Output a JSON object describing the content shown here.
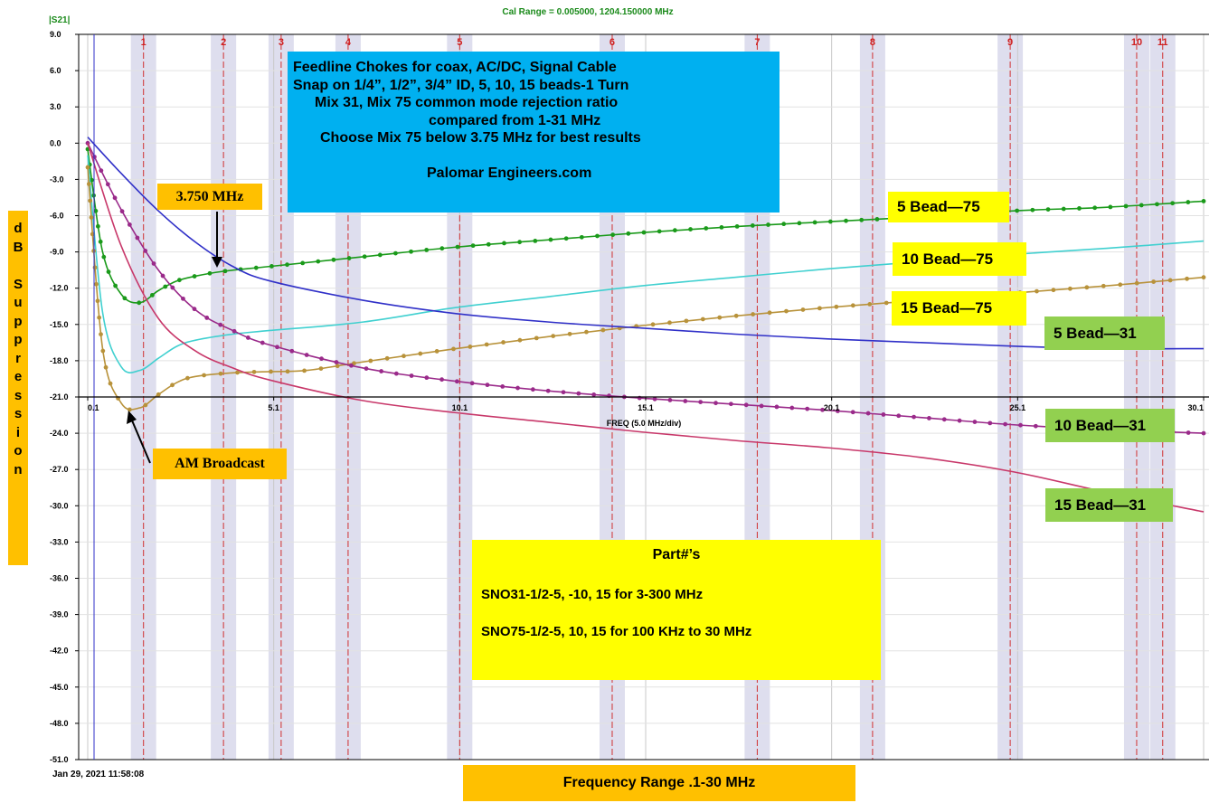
{
  "header": {
    "cal_range": "Cal Range = 0.005000,   1204.150000 MHz",
    "trace_label": "|S21|",
    "timestamp": "Jan 29, 2021  11:58:08",
    "x_axis_caption": "FREQ (5.0 MHz/div)"
  },
  "title_box": {
    "lines": [
      "Feedline Chokes for coax, AC/DC, Signal Cable",
      "Snap on 1/4”, 1/2”, 3/4” ID, 5, 10, 15 beads-1 Turn",
      "Mix 31, Mix 75 common mode rejection ratio",
      "compared from 1-31 MHz",
      "Choose Mix 75 below 3.75 MHz for best results",
      "",
      "Palomar Engineers.com"
    ]
  },
  "parts_box": {
    "heading": "Part#’s",
    "line1": "SNO31-1/2-5, -10, 15 for 3-300 MHz",
    "line2": "SNO75-1/2-5, 10, 15 for 100 KHz to 30 MHz"
  },
  "annotations": {
    "freq_375": "3.750 MHz",
    "am_broadcast": "AM Broadcast",
    "y_axis_title": "dB Suppression",
    "x_axis_title": "Frequency Range .1-30 MHz"
  },
  "series_labels": {
    "b5_75": "5 Bead—75",
    "b10_75": "10 Bead—75",
    "b15_75": "15 Bead—75",
    "b5_31": "5 Bead—31",
    "b10_31": "10 Bead—31",
    "b15_31": "15 Bead—31"
  },
  "colors": {
    "b5_75": "#1a9a1a",
    "b10_75": "#40d0d0",
    "b15_75": "#b8923a",
    "b5_31": "#3030c8",
    "b10_31": "#9a2a8a",
    "b15_31": "#c8386a",
    "title_bg": "#00b0f0",
    "label_yellow": "#ffff00",
    "label_green": "#92d050",
    "label_orange": "#ffc000"
  },
  "chart_data": {
    "type": "line",
    "xlim": [
      0.1,
      30.1
    ],
    "ylim": [
      -51,
      9
    ],
    "x_ticks": [
      {
        "value": 0.1,
        "label": "0.1"
      },
      {
        "value": 5.1,
        "label": "5.1"
      },
      {
        "value": 10.1,
        "label": "10.1"
      },
      {
        "value": 15.1,
        "label": "15.1"
      },
      {
        "value": 20.1,
        "label": "20.1"
      },
      {
        "value": 25.1,
        "label": "25.1"
      },
      {
        "value": 30.1,
        "label": "30.1"
      }
    ],
    "y_ticks": [
      9.0,
      6.0,
      3.0,
      0.0,
      -3.0,
      -6.0,
      -9.0,
      -12.0,
      -15.0,
      -18.0,
      -21.0,
      -24.0,
      -27.0,
      -30.0,
      -33.0,
      -36.0,
      -39.0,
      -42.0,
      -45.0,
      -48.0,
      -51.0
    ],
    "y_tick_labels": [
      "9.0",
      "6.0",
      "3.0",
      "0.0",
      "-3.0",
      "-6.0",
      "-9.0",
      "-12.0",
      "-15.0",
      "-18.0",
      "-21.0",
      "-24.0",
      "-27.0",
      "-30.0",
      "-33.0",
      "-36.0",
      "-39.0",
      "-42.0",
      "-45.0",
      "-48.0",
      "-51.0"
    ],
    "markers": [
      {
        "label": "1",
        "x": 1.6
      },
      {
        "label": "2",
        "x": 3.75
      },
      {
        "label": "3",
        "x": 5.3
      },
      {
        "label": "4",
        "x": 7.1
      },
      {
        "label": "5",
        "x": 10.1
      },
      {
        "label": "6",
        "x": 14.2
      },
      {
        "label": "7",
        "x": 18.1
      },
      {
        "label": "8",
        "x": 21.2
      },
      {
        "label": "9",
        "x": 24.9
      },
      {
        "label": "10",
        "x": 28.3
      },
      {
        "label": "11",
        "x": 29.0
      }
    ],
    "series": [
      {
        "key": "b5_75",
        "dots": true,
        "x": [
          0.1,
          0.5,
          1,
          1.5,
          2,
          2.5,
          3,
          3.75,
          5,
          7.5,
          10,
          12.5,
          15,
          17.5,
          20,
          22.5,
          25,
          27.5,
          30.1
        ],
        "y": [
          -0.5,
          -9,
          -12.5,
          -13.2,
          -12.2,
          -11.4,
          -11,
          -10.6,
          -10.2,
          -9.4,
          -8.6,
          -8,
          -7.4,
          -6.9,
          -6.5,
          -6.1,
          -5.6,
          -5.3,
          -4.8
        ]
      },
      {
        "key": "b10_75",
        "dots": false,
        "x": [
          0.1,
          0.5,
          1,
          1.5,
          2,
          2.5,
          3,
          4,
          5,
          7.5,
          10,
          12.5,
          15,
          17.5,
          20,
          22.5,
          25,
          27.5,
          30.1
        ],
        "y": [
          -1,
          -14,
          -18.5,
          -18.8,
          -17.8,
          -16.8,
          -16.3,
          -15.8,
          -15.5,
          -14.8,
          -13.6,
          -12.7,
          -11.8,
          -11.1,
          -10.4,
          -9.8,
          -9.2,
          -8.7,
          -8.1
        ]
      },
      {
        "key": "b15_75",
        "dots": true,
        "x": [
          0.1,
          0.5,
          1,
          1.5,
          2,
          2.5,
          3,
          4,
          5,
          6,
          7.5,
          10,
          12.5,
          15,
          17.5,
          20,
          22.5,
          25,
          27.5,
          30.1
        ],
        "y": [
          -2,
          -17,
          -21.5,
          -21.9,
          -20.8,
          -19.8,
          -19.3,
          -19,
          -18.9,
          -18.8,
          -18.1,
          -17,
          -16,
          -15.1,
          -14.3,
          -13.6,
          -13,
          -12.4,
          -11.8,
          -11.1
        ]
      },
      {
        "key": "b5_31",
        "dots": false,
        "x": [
          0.1,
          1,
          2,
          3,
          4,
          5,
          7.5,
          10,
          12.5,
          15,
          17.5,
          20,
          22.5,
          25,
          27.5,
          30.1
        ],
        "y": [
          0.5,
          -2.5,
          -5.6,
          -8.2,
          -10.2,
          -11.4,
          -13,
          -14.1,
          -14.8,
          -15.3,
          -15.8,
          -16.2,
          -16.5,
          -16.8,
          -17,
          -17
        ]
      },
      {
        "key": "b10_31",
        "dots": true,
        "x": [
          0.1,
          1,
          2,
          3,
          4,
          5,
          7.5,
          10,
          12.5,
          15,
          17.5,
          20,
          22.5,
          25,
          27.5,
          30.1
        ],
        "y": [
          0,
          -5.5,
          -10.5,
          -13.8,
          -15.5,
          -16.7,
          -18.6,
          -19.7,
          -20.5,
          -21.1,
          -21.6,
          -22.1,
          -22.7,
          -23.3,
          -23.7,
          -24
        ]
      },
      {
        "key": "b15_31",
        "dots": false,
        "x": [
          0.1,
          1,
          2,
          3,
          4,
          5,
          7.5,
          10,
          12.5,
          15,
          17.5,
          20,
          22.5,
          25,
          27.5,
          30.1
        ],
        "y": [
          0,
          -8.5,
          -14.5,
          -17.2,
          -18.6,
          -19.6,
          -21.3,
          -22.3,
          -23.1,
          -23.9,
          -24.6,
          -25.2,
          -26,
          -27.2,
          -28.9,
          -30.5
        ]
      }
    ]
  }
}
